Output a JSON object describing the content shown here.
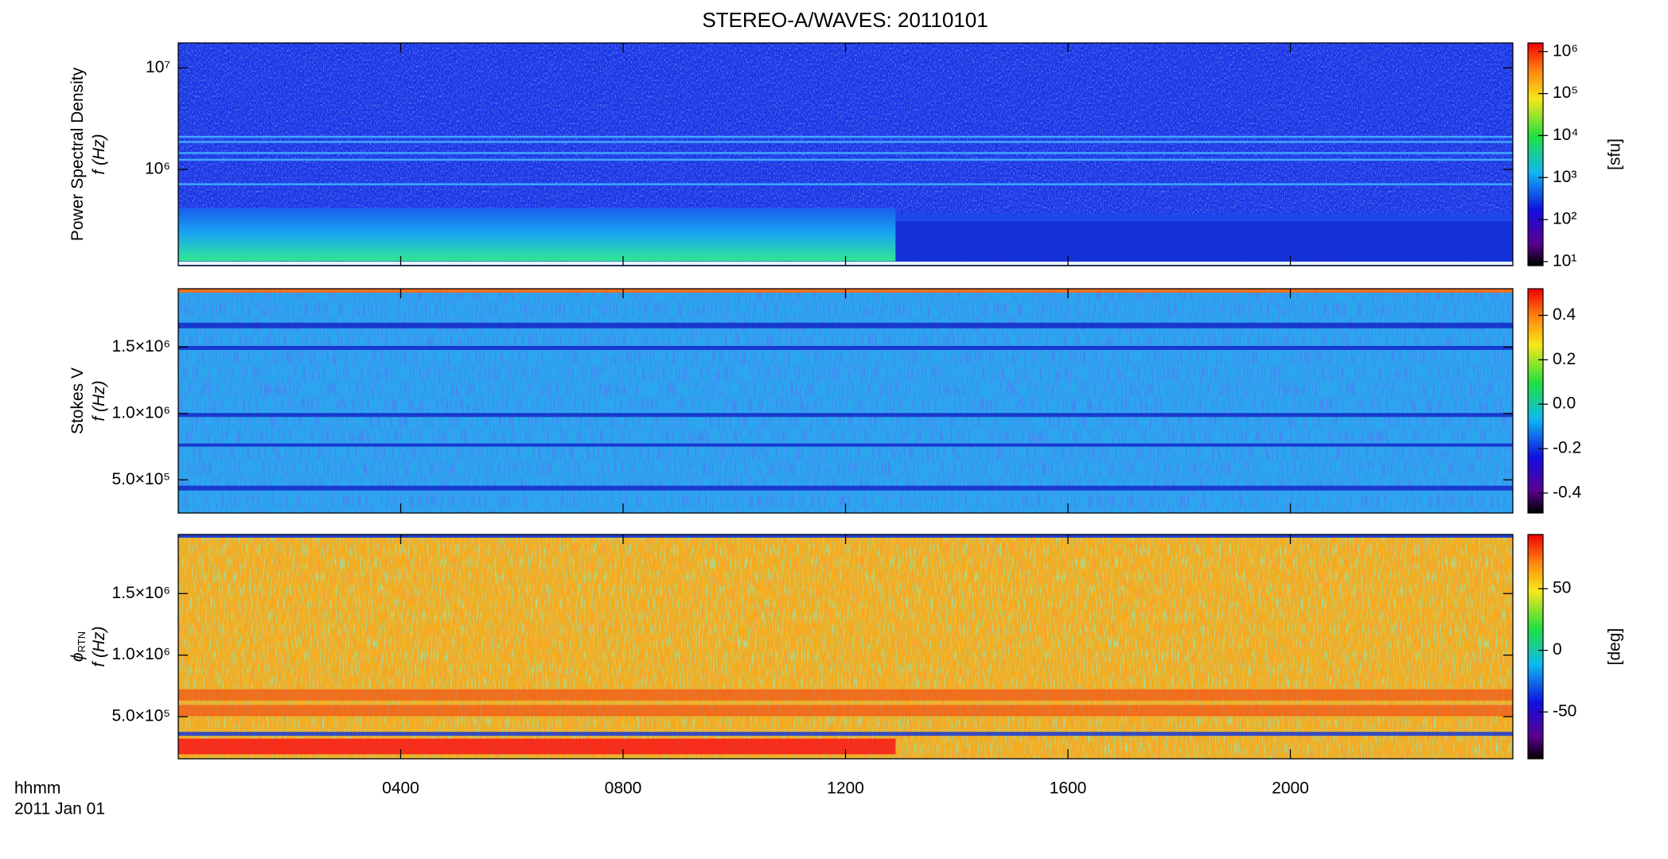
{
  "title": "STEREO-A/WAVES: 20110101",
  "x_axis_label": [
    "hhmm",
    "2011 Jan 01"
  ],
  "chart_data": [
    {
      "type": "heatmap",
      "ylabel": [
        "Power Spectral Density",
        "f (Hz)"
      ],
      "log_y": true,
      "ylim": [
        113000,
        17600000
      ],
      "yticks": [
        {
          "value": 1000000,
          "label": "10⁶"
        },
        {
          "value": 10000000,
          "label": "10⁷"
        }
      ],
      "xlim": [
        0,
        24
      ],
      "xticks": [
        4,
        8,
        12,
        16,
        20
      ],
      "colorbar": {
        "log": true,
        "lim": [
          8,
          1600000
        ],
        "label": "[sfu]",
        "ticks": [
          {
            "value": 10,
            "label": "10¹"
          },
          {
            "value": 100,
            "label": "10²"
          },
          {
            "value": 1000,
            "label": "10³"
          },
          {
            "value": 10000,
            "label": "10⁴"
          },
          {
            "value": 100000,
            "label": "10⁵"
          },
          {
            "value": 1000000,
            "label": "10⁶"
          }
        ]
      }
    },
    {
      "type": "heatmap",
      "ylabel": [
        "Stokes V",
        "f (Hz)"
      ],
      "log_y": false,
      "ylim": [
        250000,
        1940000
      ],
      "yticks": [
        {
          "value": 500000,
          "label": "5.0×10⁵"
        },
        {
          "value": 1000000,
          "label": "1.0×10⁶"
        },
        {
          "value": 1500000,
          "label": "1.5×10⁶"
        }
      ],
      "xlim": [
        0,
        24
      ],
      "xticks": [
        4,
        8,
        12,
        16,
        20
      ],
      "colorbar": {
        "log": false,
        "lim": [
          -0.49,
          0.52
        ],
        "ticks": [
          {
            "value": -0.4,
            "label": "-0.4"
          },
          {
            "value": -0.2,
            "label": "-0.2"
          },
          {
            "value": 0,
            "label": "0.0"
          },
          {
            "value": 0.2,
            "label": "0.2"
          },
          {
            "value": 0.4,
            "label": "0.4"
          }
        ]
      }
    },
    {
      "type": "heatmap",
      "ylabel": [
        "ϕ",
        "f (Hz)"
      ],
      "ylabel_sub": "RTN",
      "log_y": false,
      "ylim": [
        158000,
        1980000
      ],
      "yticks": [
        {
          "value": 500000,
          "label": "5.0×10⁵"
        },
        {
          "value": 1000000,
          "label": "1.0×10⁶"
        },
        {
          "value": 1500000,
          "label": "1.5×10⁶"
        }
      ],
      "xlim": [
        0,
        24
      ],
      "xticks": [
        {
          "value": 4,
          "label": "0400"
        },
        {
          "value": 8,
          "label": "0800"
        },
        {
          "value": 12,
          "label": "1200"
        },
        {
          "value": 16,
          "label": "1600"
        },
        {
          "value": 20,
          "label": "2000"
        }
      ],
      "colorbar": {
        "log": false,
        "lim": [
          -88,
          94
        ],
        "label": "[deg]",
        "ticks": [
          -50,
          0,
          50
        ]
      }
    }
  ]
}
